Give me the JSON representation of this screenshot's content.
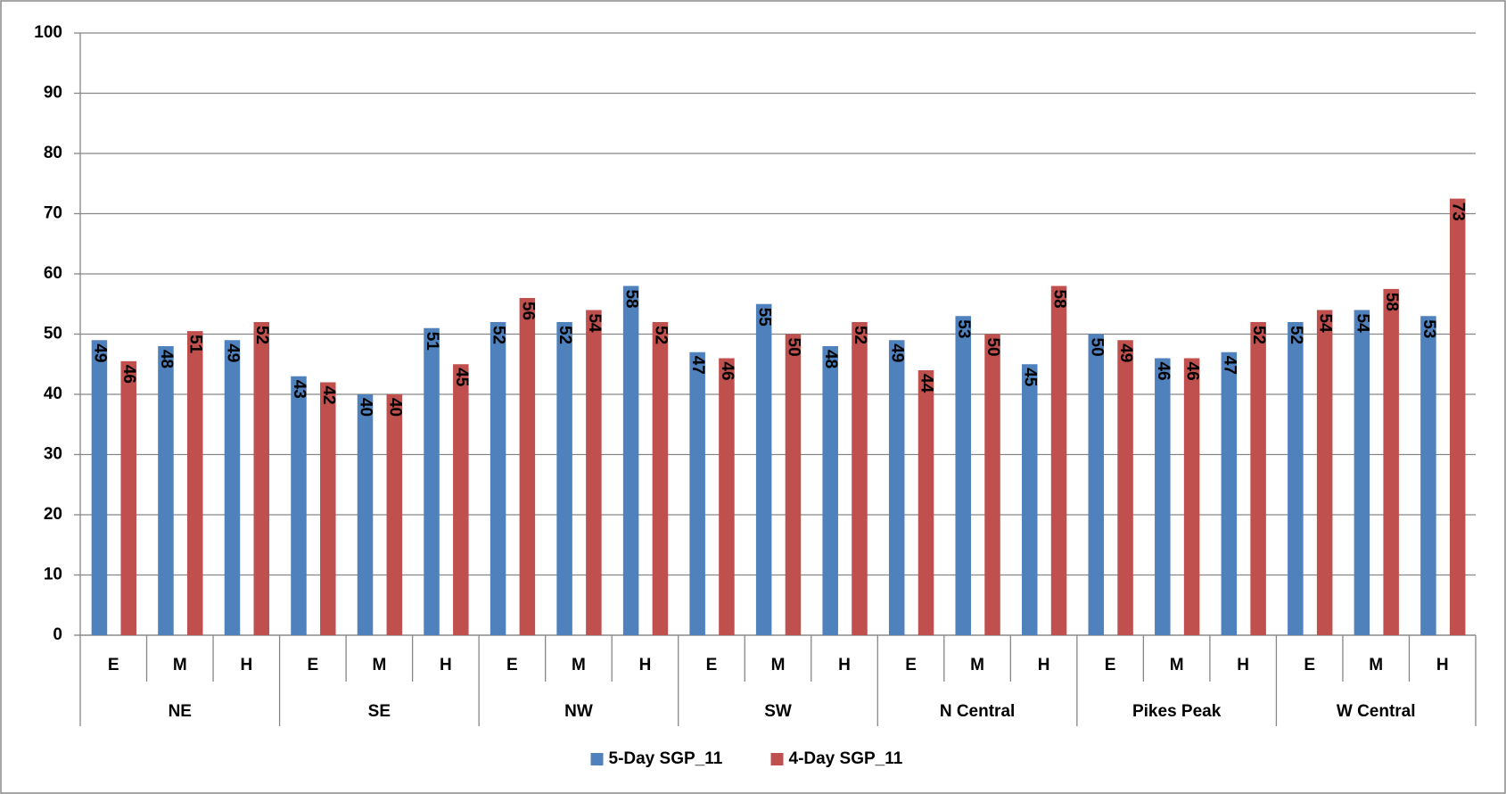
{
  "chart_data": {
    "type": "bar",
    "categories": [
      "E",
      "M",
      "H",
      "E",
      "M",
      "H",
      "E",
      "M",
      "H",
      "E",
      "M",
      "H",
      "E",
      "M",
      "H",
      "E",
      "M",
      "H",
      "E",
      "M",
      "H"
    ],
    "groups": [
      "NE",
      "SE",
      "NW",
      "SW",
      "N Central",
      "Pikes Peak",
      "W Central"
    ],
    "series": [
      {
        "name": "5-Day SGP_11",
        "color": "#4f81bd",
        "values": [
          49,
          48,
          49,
          43,
          40,
          51,
          52,
          52,
          58,
          47,
          55,
          48,
          49,
          53,
          45,
          50,
          46,
          47,
          52,
          54,
          53
        ]
      },
      {
        "name": "4-Day SGP_11",
        "color": "#c0504d",
        "values": [
          45.5,
          50.5,
          52,
          42,
          40,
          45,
          56,
          54,
          52,
          46,
          50,
          52,
          44,
          50,
          58,
          49,
          46,
          52,
          54,
          57.5,
          72.5
        ],
        "value_labels": [
          "46",
          "51",
          "52",
          "42",
          "40",
          "45",
          "56",
          "54",
          "52",
          "46",
          "50",
          "52",
          "44",
          "50",
          "58",
          "49",
          "46",
          "52",
          "54",
          "58",
          "73"
        ]
      }
    ],
    "ylim": [
      0,
      100
    ],
    "yticks": [
      0,
      10,
      20,
      30,
      40,
      50,
      60,
      70,
      80,
      90,
      100
    ],
    "grid": true,
    "legend": "bottom"
  }
}
